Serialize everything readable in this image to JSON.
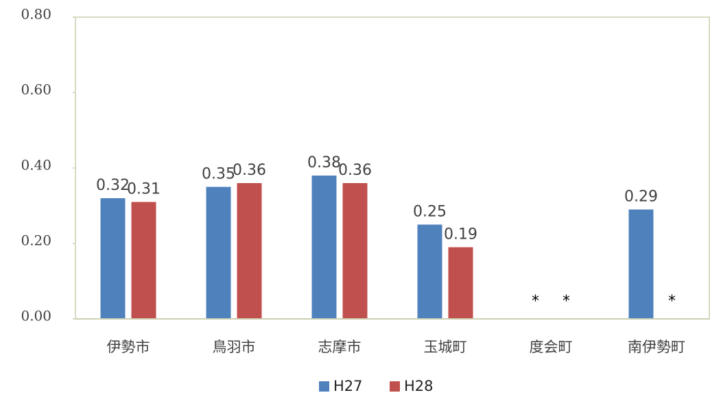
{
  "chart_data": {
    "type": "bar",
    "categories": [
      "伊勢市",
      "鳥羽市",
      "志摩市",
      "玉城町",
      "度会町",
      "南伊勢町"
    ],
    "series": [
      {
        "name": "H27",
        "color": "#4f81bd",
        "values": [
          0.32,
          0.35,
          0.38,
          0.25,
          null,
          0.29
        ],
        "value_labels": [
          "0.32",
          "0.35",
          "0.38",
          "0.25",
          "*",
          "0.29"
        ]
      },
      {
        "name": "H28",
        "color": "#c0504d",
        "values": [
          0.31,
          0.36,
          0.36,
          0.19,
          null,
          null
        ],
        "value_labels": [
          "0.31",
          "0.36",
          "0.36",
          "0.19",
          "*",
          "*"
        ]
      }
    ],
    "ylim": [
      0,
      0.8
    ],
    "yticks": [
      {
        "value": 0,
        "label": "0.00"
      },
      {
        "value": 0.2,
        "label": "0.20"
      },
      {
        "value": 0.4,
        "label": "0.40"
      },
      {
        "value": 0.6,
        "label": "0.60"
      },
      {
        "value": 0.8,
        "label": "0.80"
      }
    ],
    "legend": "bottom"
  }
}
